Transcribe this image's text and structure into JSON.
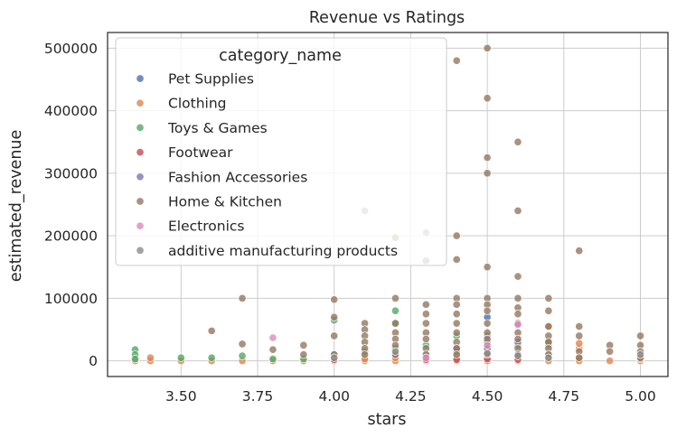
{
  "chart_data": {
    "type": "scatter",
    "title": "Revenue vs Ratings",
    "xlabel": "stars",
    "ylabel": "estimated_revenue",
    "xlim": [
      3.26,
      5.09
    ],
    "ylim": [
      -25000,
      525000
    ],
    "xticks": [
      3.5,
      3.75,
      4.0,
      4.25,
      4.5,
      4.75,
      5.0
    ],
    "xtick_labels": [
      "3.50",
      "3.75",
      "4.00",
      "4.25",
      "4.50",
      "4.75",
      "5.00"
    ],
    "yticks": [
      0,
      100000,
      200000,
      300000,
      400000,
      500000
    ],
    "ytick_labels": [
      "0",
      "100000",
      "200000",
      "300000",
      "400000",
      "500000"
    ],
    "grid": true,
    "legend": {
      "title": "category_name",
      "placement": "upper-left"
    },
    "series": [
      {
        "name": "Pet Supplies",
        "color": "#4c72b0",
        "points": [
          [
            4.5,
            20000
          ],
          [
            4.5,
            30000
          ],
          [
            4.5,
            70000
          ],
          [
            4.4,
            3000
          ],
          [
            4.6,
            10000
          ],
          [
            4.3,
            5000
          ]
        ]
      },
      {
        "name": "Clothing",
        "color": "#dd8452",
        "points": [
          [
            3.35,
            0
          ],
          [
            3.4,
            0
          ],
          [
            3.5,
            0
          ],
          [
            3.6,
            0
          ],
          [
            3.7,
            0
          ],
          [
            3.8,
            0
          ],
          [
            3.9,
            0
          ],
          [
            4.0,
            0
          ],
          [
            4.1,
            0
          ],
          [
            4.2,
            0
          ],
          [
            4.3,
            0
          ],
          [
            4.4,
            0
          ],
          [
            4.5,
            0
          ],
          [
            4.6,
            0
          ],
          [
            4.7,
            0
          ],
          [
            4.8,
            0
          ],
          [
            4.9,
            0
          ],
          [
            5.0,
            0
          ],
          [
            3.4,
            5000
          ],
          [
            4.1,
            3000
          ],
          [
            4.2,
            5000
          ],
          [
            4.4,
            5000
          ],
          [
            4.5,
            5000
          ],
          [
            4.6,
            5000
          ],
          [
            4.7,
            5000
          ],
          [
            4.8,
            5000
          ],
          [
            4.8,
            20000
          ],
          [
            4.8,
            28000
          ],
          [
            4.7,
            25000
          ],
          [
            4.7,
            55000
          ],
          [
            4.6,
            30000
          ],
          [
            4.5,
            10000
          ],
          [
            4.4,
            10000
          ],
          [
            4.3,
            3000
          ],
          [
            5.0,
            3000
          ]
        ]
      },
      {
        "name": "Toys & Games",
        "color": "#55a868",
        "points": [
          [
            3.35,
            18000
          ],
          [
            3.35,
            10000
          ],
          [
            3.35,
            3000
          ],
          [
            3.5,
            5000
          ],
          [
            3.6,
            5000
          ],
          [
            3.7,
            8000
          ],
          [
            3.8,
            3000
          ],
          [
            3.9,
            3000
          ],
          [
            4.0,
            65000
          ],
          [
            4.0,
            10000
          ],
          [
            4.1,
            15000
          ],
          [
            4.2,
            80000
          ],
          [
            4.2,
            60000
          ],
          [
            4.2,
            20000
          ],
          [
            4.3,
            25000
          ],
          [
            4.3,
            10000
          ],
          [
            4.4,
            15000
          ],
          [
            4.4,
            40000
          ],
          [
            4.5,
            30000
          ],
          [
            4.6,
            25000
          ],
          [
            4.7,
            30000
          ],
          [
            4.7,
            10000
          ]
        ]
      },
      {
        "name": "Footwear",
        "color": "#c44e52",
        "points": [
          [
            4.3,
            2000
          ],
          [
            4.5,
            3000
          ],
          [
            4.6,
            2000
          ],
          [
            4.0,
            2000
          ],
          [
            4.4,
            2000
          ]
        ]
      },
      {
        "name": "Fashion Accessories",
        "color": "#8172b3",
        "points": [
          [
            4.5,
            40000
          ],
          [
            4.6,
            30000
          ],
          [
            4.4,
            20000
          ],
          [
            4.2,
            10000
          ]
        ]
      },
      {
        "name": "Home & Kitchen",
        "color": "#937860",
        "points": [
          [
            4.5,
            500000
          ],
          [
            4.4,
            480000
          ],
          [
            4.5,
            420000
          ],
          [
            4.6,
            350000
          ],
          [
            4.5,
            325000
          ],
          [
            4.5,
            300000
          ],
          [
            4.6,
            240000
          ],
          [
            4.4,
            200000
          ],
          [
            4.2,
            197000
          ],
          [
            4.8,
            176000
          ],
          [
            4.4,
            162000
          ],
          [
            4.3,
            160000
          ],
          [
            4.5,
            150000
          ],
          [
            4.6,
            135000
          ],
          [
            3.7,
            100000
          ],
          [
            4.0,
            98000
          ],
          [
            4.2,
            100000
          ],
          [
            4.4,
            100000
          ],
          [
            4.5,
            100000
          ],
          [
            4.6,
            100000
          ],
          [
            4.7,
            100000
          ],
          [
            4.3,
            90000
          ],
          [
            4.4,
            90000
          ],
          [
            4.5,
            90000
          ],
          [
            4.6,
            85000
          ],
          [
            4.3,
            75000
          ],
          [
            4.4,
            75000
          ],
          [
            4.5,
            80000
          ],
          [
            4.6,
            75000
          ],
          [
            4.7,
            80000
          ],
          [
            4.0,
            70000
          ],
          [
            4.1,
            60000
          ],
          [
            4.2,
            60000
          ],
          [
            4.3,
            60000
          ],
          [
            4.4,
            60000
          ],
          [
            4.5,
            60000
          ],
          [
            4.6,
            60000
          ],
          [
            4.7,
            55000
          ],
          [
            4.8,
            55000
          ],
          [
            3.6,
            48000
          ],
          [
            4.0,
            40000
          ],
          [
            4.1,
            50000
          ],
          [
            4.1,
            40000
          ],
          [
            4.2,
            45000
          ],
          [
            4.3,
            45000
          ],
          [
            4.4,
            45000
          ],
          [
            4.5,
            45000
          ],
          [
            4.6,
            45000
          ],
          [
            4.7,
            40000
          ],
          [
            4.8,
            40000
          ],
          [
            5.0,
            40000
          ],
          [
            3.7,
            27000
          ],
          [
            3.9,
            25000
          ],
          [
            4.1,
            30000
          ],
          [
            4.2,
            35000
          ],
          [
            4.3,
            35000
          ],
          [
            4.4,
            30000
          ],
          [
            4.5,
            35000
          ],
          [
            4.6,
            35000
          ],
          [
            4.7,
            30000
          ],
          [
            4.9,
            25000
          ],
          [
            5.0,
            25000
          ],
          [
            3.8,
            18000
          ],
          [
            4.1,
            20000
          ],
          [
            4.2,
            25000
          ],
          [
            4.3,
            20000
          ],
          [
            4.4,
            20000
          ],
          [
            4.5,
            20000
          ],
          [
            4.6,
            20000
          ],
          [
            4.7,
            20000
          ],
          [
            4.8,
            15000
          ],
          [
            4.9,
            15000
          ],
          [
            5.0,
            15000
          ],
          [
            3.9,
            10000
          ],
          [
            4.0,
            10000
          ],
          [
            4.1,
            10000
          ],
          [
            4.2,
            10000
          ],
          [
            4.3,
            10000
          ],
          [
            4.4,
            10000
          ],
          [
            4.5,
            10000
          ],
          [
            4.6,
            10000
          ],
          [
            4.7,
            10000
          ],
          [
            4.8,
            5000
          ],
          [
            5.0,
            5000
          ]
        ]
      },
      {
        "name": "Electronics",
        "color": "#da8bc3",
        "points": [
          [
            3.8,
            37000
          ],
          [
            4.6,
            58000
          ],
          [
            4.5,
            25000
          ],
          [
            4.3,
            5000
          ]
        ]
      },
      {
        "name": "additive manufacturing products",
        "color": "#8c8c8c",
        "points": [
          [
            4.1,
            240000
          ],
          [
            4.3,
            205000
          ],
          [
            4.2,
            15000
          ],
          [
            4.5,
            12000
          ],
          [
            4.6,
            8000
          ],
          [
            5.0,
            10000
          ],
          [
            4.0,
            5000
          ],
          [
            4.7,
            5000
          ]
        ]
      }
    ]
  }
}
